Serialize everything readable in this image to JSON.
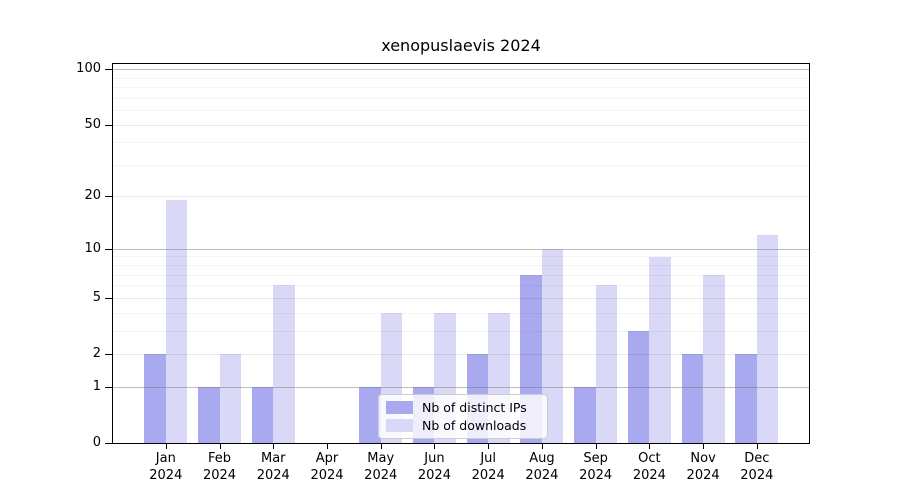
{
  "chart_data": {
    "type": "bar",
    "title": "xenopuslaevis 2024",
    "categories": [
      "Jan 2024",
      "Feb 2024",
      "Mar 2024",
      "Apr 2024",
      "May 2024",
      "Jun 2024",
      "Jul 2024",
      "Aug 2024",
      "Sep 2024",
      "Oct 2024",
      "Nov 2024",
      "Dec 2024"
    ],
    "months": [
      "Jan",
      "Feb",
      "Mar",
      "Apr",
      "May",
      "Jun",
      "Jul",
      "Aug",
      "Sep",
      "Oct",
      "Nov",
      "Dec"
    ],
    "year_label": "2024",
    "series": [
      {
        "name": "Nb of distinct IPs",
        "color": "#a9a9ef",
        "values": [
          2,
          1,
          1,
          0,
          1,
          1,
          2,
          7,
          1,
          3,
          2,
          2
        ]
      },
      {
        "name": "Nb of downloads",
        "color": "#d9d9f7",
        "values": [
          19,
          2,
          6,
          0,
          4,
          4,
          4,
          10,
          6,
          9,
          7,
          12
        ]
      }
    ],
    "y_scale": "log1p",
    "ylim": [
      0,
      108
    ],
    "y_ticks": [
      0,
      1,
      2,
      5,
      10,
      20,
      50,
      100
    ],
    "y_major_ticks": [
      1,
      10,
      100
    ],
    "y_minor_ticks": [
      3,
      4,
      6,
      7,
      8,
      9,
      30,
      40,
      60,
      70,
      80,
      90
    ],
    "grid": "horizontal, drawn over bars",
    "legend_position": "lower center inside plot"
  }
}
